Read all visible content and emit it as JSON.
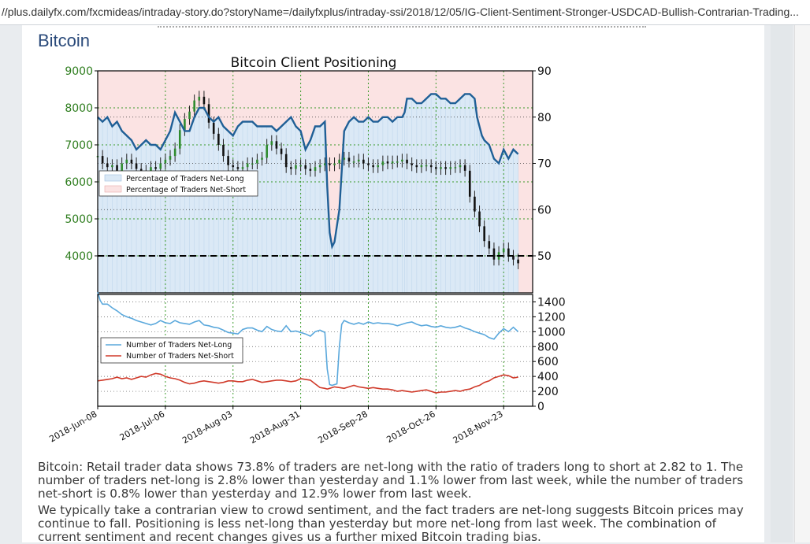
{
  "browser": {
    "url": "//plus.dailyfx.com/fxcmideas/intraday-story.do?storyName=/dailyfxplus/intraday-ssi/2018/12/05/IG-Client-Sentiment-Stronger-USDCAD-Bullish-Contrarian-Trading..."
  },
  "article": {
    "section_title": "Bitcoin",
    "paragraph_1": "Bitcoin: Retail trader data shows 73.8% of traders are net-long with the ratio of traders long to short at 2.82 to 1. The number of traders net-long is 2.8% lower than yesterday and 1.1% lower from last week, while the number of traders net-short is 0.8% lower than yesterday and 12.9% lower from last week.",
    "paragraph_2": "We typically take a contrarian view to crowd sentiment, and the fact traders are net-long suggests Bitcoin prices may continue to fall. Positioning is less net-long than yesterday but more net-long from last week. The combination of current sentiment and recent changes gives us a further mixed Bitcoin trading bias."
  },
  "colors": {
    "net_long_fill": "#dbe9f6",
    "net_short_fill": "#fbe3e3",
    "pct_line": "#1f5f96",
    "net_long_line": "#5aa8dc",
    "net_short_line": "#d03a2a",
    "price_axis": "#2e7d1e",
    "grid_green": "#3a9a2a"
  },
  "chart_data": [
    {
      "type": "line",
      "title": "Bitcoin Client Positioning",
      "left_axis": {
        "ylim": [
          3000,
          9000
        ],
        "ticks": [
          4000,
          5000,
          6000,
          7000,
          8000,
          9000
        ]
      },
      "right_axis": {
        "ylim": [
          42,
          90
        ],
        "ticks": [
          50,
          60,
          70,
          80,
          90
        ]
      },
      "x_ticks": [
        "2018-Jun-08",
        "2018-Jul-06",
        "2018-Aug-03",
        "2018-Aug-31",
        "2018-Sep-28",
        "2018-Oct-26",
        "2018-Nov-23"
      ],
      "x_tick_days": [
        0,
        28,
        56,
        84,
        112,
        140,
        168
      ],
      "x_range_days": [
        0,
        180
      ],
      "reference_line_right_axis": 50,
      "legend": {
        "placement": "upper-left",
        "entries": [
          "Percentage of Traders Net-Long",
          "Percentage of Traders Net-Short"
        ]
      },
      "series": [
        {
          "name": "Percentage of Traders Net-Long",
          "axis": "right",
          "x": [
            0,
            2,
            4,
            6,
            8,
            10,
            12,
            14,
            16,
            18,
            20,
            22,
            24,
            26,
            28,
            30,
            32,
            34,
            36,
            38,
            40,
            42,
            44,
            46,
            48,
            50,
            52,
            54,
            56,
            58,
            60,
            62,
            64,
            66,
            68,
            70,
            72,
            74,
            76,
            78,
            80,
            82,
            84,
            86,
            88,
            90,
            92,
            94,
            95,
            96,
            97,
            98,
            100,
            102,
            104,
            106,
            108,
            110,
            112,
            114,
            116,
            118,
            120,
            122,
            124,
            126,
            127,
            128,
            130,
            132,
            134,
            136,
            138,
            140,
            142,
            144,
            146,
            148,
            150,
            152,
            154,
            156,
            157,
            158,
            159,
            160,
            162,
            164,
            166,
            168,
            170,
            172,
            174
          ],
          "y": [
            80,
            79,
            80,
            78,
            79,
            77,
            76,
            75,
            73,
            74,
            75,
            74,
            74,
            73,
            75,
            77,
            81,
            79,
            77,
            77,
            80,
            82,
            82,
            80,
            79,
            80,
            78,
            77,
            76,
            78,
            79,
            79,
            79,
            78,
            78,
            78,
            78,
            77,
            78,
            79,
            80,
            78,
            77,
            73,
            75,
            78,
            78,
            79,
            65,
            55,
            52,
            53,
            60,
            77,
            79,
            80,
            79,
            79,
            80,
            79,
            79,
            80,
            80,
            79,
            80,
            80,
            81,
            84,
            84,
            83,
            83,
            84,
            85,
            85,
            84,
            84,
            83,
            83,
            84,
            85,
            85,
            84,
            80,
            78,
            76,
            75,
            74,
            71,
            70,
            73,
            71,
            73,
            72
          ]
        },
        {
          "name": "Bitcoin price (daily candles)",
          "axis": "left",
          "x": [
            0,
            2,
            4,
            6,
            8,
            10,
            12,
            14,
            16,
            18,
            20,
            22,
            24,
            26,
            28,
            30,
            32,
            34,
            36,
            38,
            40,
            42,
            44,
            46,
            48,
            50,
            52,
            54,
            56,
            58,
            60,
            62,
            64,
            66,
            68,
            70,
            72,
            74,
            76,
            78,
            80,
            82,
            84,
            86,
            88,
            90,
            92,
            94,
            96,
            98,
            100,
            102,
            104,
            106,
            108,
            110,
            112,
            114,
            116,
            118,
            120,
            122,
            124,
            126,
            128,
            130,
            132,
            134,
            136,
            138,
            140,
            142,
            144,
            146,
            148,
            150,
            152,
            154,
            156,
            158,
            160,
            162,
            164,
            166,
            168,
            170,
            172,
            174
          ],
          "y": [
            6700,
            6500,
            6400,
            6450,
            6300,
            6500,
            6600,
            6500,
            6350,
            6300,
            6200,
            6400,
            6350,
            6500,
            6600,
            6700,
            6900,
            7400,
            7700,
            7900,
            8200,
            8300,
            8100,
            7600,
            7300,
            7000,
            6700,
            6450,
            6400,
            6350,
            6400,
            6500,
            6500,
            6600,
            6650,
            7000,
            7100,
            6900,
            6750,
            6400,
            6350,
            6450,
            6450,
            6350,
            6300,
            6400,
            6450,
            6500,
            6450,
            6500,
            6600,
            6650,
            6550,
            6550,
            6600,
            6500,
            6450,
            6400,
            6450,
            6550,
            6500,
            6550,
            6550,
            6600,
            6500,
            6450,
            6400,
            6450,
            6450,
            6400,
            6350,
            6400,
            6350,
            6400,
            6400,
            6450,
            6300,
            5600,
            5200,
            4800,
            4400,
            4200,
            3900,
            4100,
            4200,
            4000,
            3900,
            3800
          ]
        }
      ]
    },
    {
      "type": "line",
      "right_axis": {
        "ylim": [
          0,
          1500
        ],
        "ticks": [
          0,
          200,
          400,
          600,
          800,
          1000,
          1200,
          1400
        ]
      },
      "legend": {
        "placement": "left",
        "entries": [
          "Number of Traders Net-Long",
          "Number of Traders Net-Short"
        ]
      },
      "series": [
        {
          "name": "Number of Traders Net-Long",
          "x": [
            0,
            1,
            2,
            4,
            6,
            8,
            10,
            12,
            14,
            16,
            18,
            20,
            22,
            24,
            26,
            28,
            30,
            32,
            34,
            36,
            38,
            40,
            42,
            44,
            46,
            48,
            50,
            52,
            54,
            56,
            58,
            60,
            62,
            64,
            66,
            68,
            70,
            72,
            74,
            76,
            78,
            80,
            82,
            84,
            86,
            88,
            90,
            92,
            94,
            95,
            96,
            97,
            98,
            99,
            100,
            101,
            102,
            104,
            106,
            108,
            110,
            112,
            114,
            116,
            118,
            120,
            122,
            124,
            126,
            128,
            130,
            132,
            134,
            136,
            138,
            140,
            142,
            144,
            146,
            148,
            150,
            152,
            154,
            156,
            158,
            160,
            162,
            164,
            166,
            168,
            170,
            172,
            174
          ],
          "y": [
            1530,
            1420,
            1370,
            1370,
            1320,
            1280,
            1230,
            1200,
            1180,
            1150,
            1130,
            1110,
            1090,
            1110,
            1150,
            1120,
            1110,
            1150,
            1120,
            1110,
            1100,
            1130,
            1150,
            1090,
            1080,
            1060,
            1050,
            1020,
            990,
            980,
            970,
            1030,
            1050,
            1050,
            1020,
            1000,
            1070,
            1030,
            1010,
            1000,
            1080,
            1000,
            1010,
            990,
            970,
            940,
            1000,
            1020,
            990,
            500,
            290,
            280,
            290,
            300,
            800,
            1100,
            1150,
            1120,
            1100,
            1120,
            1100,
            1130,
            1110,
            1120,
            1110,
            1110,
            1100,
            1080,
            1100,
            1120,
            1130,
            1100,
            1080,
            1090,
            1070,
            1060,
            1080,
            1060,
            1050,
            1060,
            1080,
            1050,
            1030,
            1000,
            980,
            960,
            920,
            900,
            980,
            1040,
            1000,
            1060,
            1000
          ]
        },
        {
          "name": "Number of Traders Net-Short",
          "x": [
            0,
            2,
            4,
            6,
            8,
            10,
            12,
            14,
            16,
            18,
            20,
            22,
            24,
            26,
            28,
            30,
            32,
            34,
            36,
            38,
            40,
            42,
            44,
            46,
            48,
            50,
            52,
            54,
            56,
            58,
            60,
            62,
            64,
            66,
            68,
            70,
            72,
            74,
            76,
            78,
            80,
            82,
            84,
            86,
            88,
            90,
            92,
            94,
            95,
            96,
            98,
            100,
            102,
            104,
            106,
            108,
            110,
            112,
            114,
            116,
            118,
            120,
            122,
            124,
            126,
            128,
            130,
            132,
            134,
            136,
            138,
            140,
            142,
            144,
            146,
            148,
            150,
            152,
            154,
            156,
            158,
            160,
            162,
            164,
            166,
            168,
            170,
            172,
            174
          ],
          "y": [
            340,
            350,
            360,
            370,
            390,
            370,
            380,
            360,
            380,
            400,
            390,
            420,
            440,
            430,
            400,
            380,
            370,
            350,
            320,
            300,
            310,
            330,
            340,
            330,
            320,
            310,
            320,
            340,
            340,
            330,
            330,
            350,
            360,
            340,
            320,
            330,
            340,
            350,
            350,
            340,
            330,
            340,
            370,
            360,
            350,
            300,
            250,
            240,
            230,
            240,
            260,
            250,
            240,
            260,
            280,
            260,
            250,
            240,
            250,
            240,
            230,
            230,
            220,
            200,
            210,
            200,
            190,
            200,
            210,
            220,
            200,
            180,
            190,
            190,
            200,
            210,
            200,
            220,
            230,
            260,
            280,
            320,
            340,
            380,
            400,
            420,
            410,
            380,
            390
          ]
        }
      ]
    }
  ]
}
